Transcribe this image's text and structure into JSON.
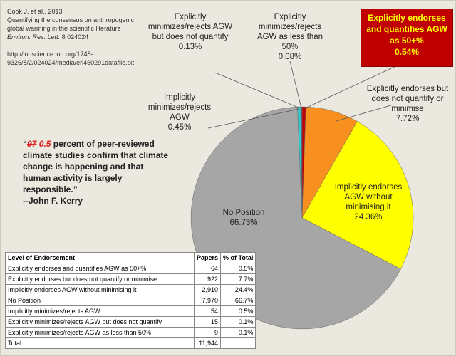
{
  "chart_data": {
    "type": "pie",
    "categories": [
      "Explicitly endorses and quantifies AGW as 50+%",
      "Explicitly endorses but does not quantify or minimise",
      "Implicitly endorses AGW without minimising it",
      "No Position",
      "Implicitly minimizes/rejects AGW",
      "Explicitly minimizes/rejects AGW but does not quantify",
      "Explicitly minimizes/rejects AGW as less than 50%"
    ],
    "values": [
      0.54,
      7.72,
      24.36,
      66.73,
      0.45,
      0.13,
      0.08
    ],
    "value_labels": [
      "0.54%",
      "7.72%",
      "24.36%",
      "66.73%",
      "0.45%",
      "0.13%",
      "0.08%"
    ],
    "colors": [
      "#c00000",
      "#f7901e",
      "#ffff00",
      "#a6a6a6",
      "#33cccc",
      "#1f3a93",
      "#7030a0"
    ]
  },
  "citation": {
    "author": "Cook J, et al., 2013",
    "title": [
      "Quantifying the consensus on anthropogenic",
      "global warming in the scientific literature"
    ],
    "journal": "Environ. Res. Lett.",
    "volume": "8 024024",
    "url": [
      "http://iopscience.iop.org/1748-",
      "9326/8/2/024024/media/erl460291datafile.txt"
    ]
  },
  "quote": {
    "open": "“",
    "struck": "97",
    "replacement": "0.5",
    "text": "percent of peer-reviewed climate studies confirm that climate change is happening and that human activity is largely responsible.”",
    "attribution": "--John F. Kerry"
  },
  "table": {
    "header": [
      "Level of Endorsement",
      "Papers",
      "% of Total"
    ],
    "rows": [
      [
        "Explicitly endorses and quantifies AGW as 50+%",
        "64",
        "0.5%"
      ],
      [
        "Explicitly endorses but does not quantify or minimise",
        "922",
        "7.7%"
      ],
      [
        "Implicitly endorses AGW without minimising it",
        "2,910",
        "24.4%"
      ],
      [
        "No Position",
        "7,970",
        "66.7%"
      ],
      [
        "Implicitly minimizes/rejects AGW",
        "54",
        "0.5%"
      ],
      [
        "Explicitly minimizes/rejects AGW but does not quantify",
        "15",
        "0.1%"
      ],
      [
        "Explicitly minimizes/rejects AGW as less than 50%",
        "9",
        "0.1%"
      ],
      [
        "Total",
        "11,944",
        ""
      ]
    ]
  }
}
